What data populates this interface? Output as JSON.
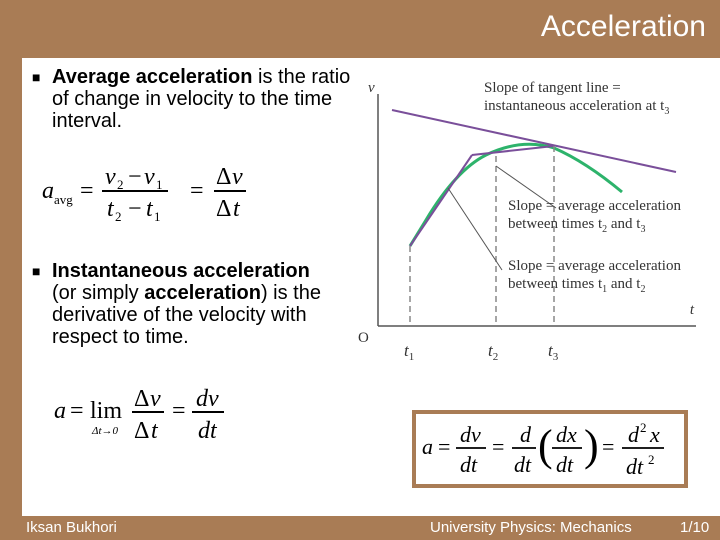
{
  "title": "Acceleration",
  "bullets": {
    "avg_bold": "Average acceleration",
    "avg_rest": " is the ratio of change in velocity to the time interval.",
    "inst_bold1": "Instantaneous acceleration",
    "inst_mid": " (or simply ",
    "inst_bold2": "acceleration",
    "inst_rest": ") is the derivative of the velocity with respect to time."
  },
  "graph": {
    "v_axis_label": "v",
    "t_axis_label": "t",
    "origin_label": "O",
    "t1_label": "t",
    "t2_label": "t",
    "t3_label": "t",
    "sub1": "1",
    "sub2": "2",
    "sub3": "3",
    "tangent_line1": "Slope of tangent line =",
    "tangent_line2": "instantaneous acceleration at t",
    "avg23_line1": "Slope = average acceleration",
    "avg23_line2": "between times t",
    "avg23_and": " and t",
    "avg12_line1": "Slope = average acceleration",
    "avg12_line2": "between times t",
    "avg12_and": " and t",
    "curve_color": "#2db36b",
    "line_color": "#7a4f9a"
  },
  "footer": {
    "author": "Iksan Bukhori",
    "course": "University Physics: Mechanics",
    "page": "1/10"
  }
}
